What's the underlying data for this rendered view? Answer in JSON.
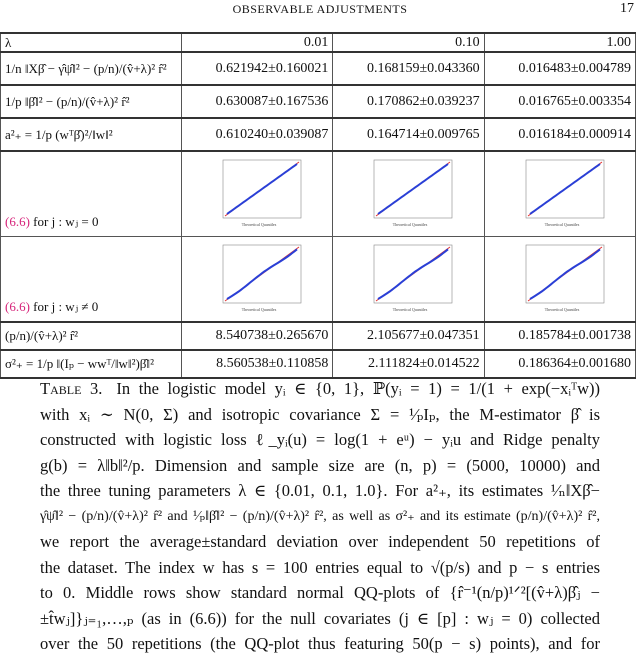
{
  "header": {
    "running_title": "OBSERVABLE ADJUSTMENTS",
    "page_number": "17"
  },
  "table": {
    "columns": [
      "λ",
      "0.01",
      "0.10",
      "1.00"
    ],
    "rows": [
      {
        "label": "1/n ‖Xβ̂ − γ̂ψ̂‖² − (p/n)/(v̂+λ)² r̂²",
        "values": [
          "0.621942±0.160021",
          "0.168159±0.043360",
          "0.016483±0.004789"
        ]
      },
      {
        "label": "1/p ‖β̂‖² − (p/n)/(v̂+λ)² r̂²",
        "values": [
          "0.630087±0.167536",
          "0.170862±0.039237",
          "0.016765±0.003354"
        ]
      },
      {
        "label": "a²₊ = 1/p (wᵀβ̂)²/‖w‖²",
        "values": [
          "0.610240±0.039087",
          "0.164714±0.009765",
          "0.016184±0.000914"
        ]
      }
    ],
    "plot_rows": [
      {
        "ref": "(6.6)",
        "label": " for j : wⱼ = 0"
      },
      {
        "ref": "(6.6)",
        "label": " for j : wⱼ ≠ 0"
      }
    ],
    "bottom_rows": [
      {
        "label": "(p/n)/(v̂+λ)² r̂²",
        "values": [
          "8.540738±0.265670",
          "2.105677±0.047351",
          "0.185784±0.001738"
        ]
      },
      {
        "label": "σ²₊ = 1/p ‖(Iₚ − wwᵀ/‖w‖²)β̂‖²",
        "values": [
          "8.560538±0.110858",
          "2.111824±0.014522",
          "0.186364±0.001680"
        ]
      }
    ],
    "plot_colors": {
      "points": "#2a3fd6",
      "reference_line": "#e03030"
    }
  },
  "caption": {
    "label": "Table 3.",
    "lines": [
      "In the logistic model yᵢ ∈ {0, 1}, ℙ(yᵢ = 1) = 1/(1 + exp(−xᵢᵀw))",
      "with xᵢ ∼ N(0, Σ) and isotropic covariance Σ = ¹⁄ₚIₚ, the M-estimator β̂ is",
      "constructed with logistic loss ℓ_yᵢ(u) = log(1 + eᵘ) − yᵢu and Ridge penalty",
      "g(b) = λ‖b‖²/p. Dimension and sample size are (n, p) = (5000, 10000) and",
      "the three tuning parameters λ ∈ {0.01, 0.1, 1.0}. For a²₊, its estimates ¹⁄ₙ‖Xβ̂−",
      "γ̂ψ̂‖² − (p/n)/(v̂+λ)² r̂² and ¹⁄ₚ‖β̂‖² − (p/n)/(v̂+λ)² r̂², as well as σ²₊ and its estimate (p/n)/(v̂+λ)² r̂²,",
      "we report the average±standard deviation over independent 50 repetitions of",
      "the dataset. The index w has s = 100 entries equal to √(p/s) and p − s entries",
      "to 0. Middle rows show standard normal QQ-plots of {r̂⁻¹(n/p)¹ᐟ²[(v̂+λ)β̂ⱼ −",
      "±t̂wⱼ]}ⱼ₌₁,…,ₚ (as in (6.6)) for the null covariates (j ∈ [p] : wⱼ = 0) collected",
      "over the 50 repetitions (the QQ-plot thus featuring 50(p − s) points), and for"
    ]
  }
}
